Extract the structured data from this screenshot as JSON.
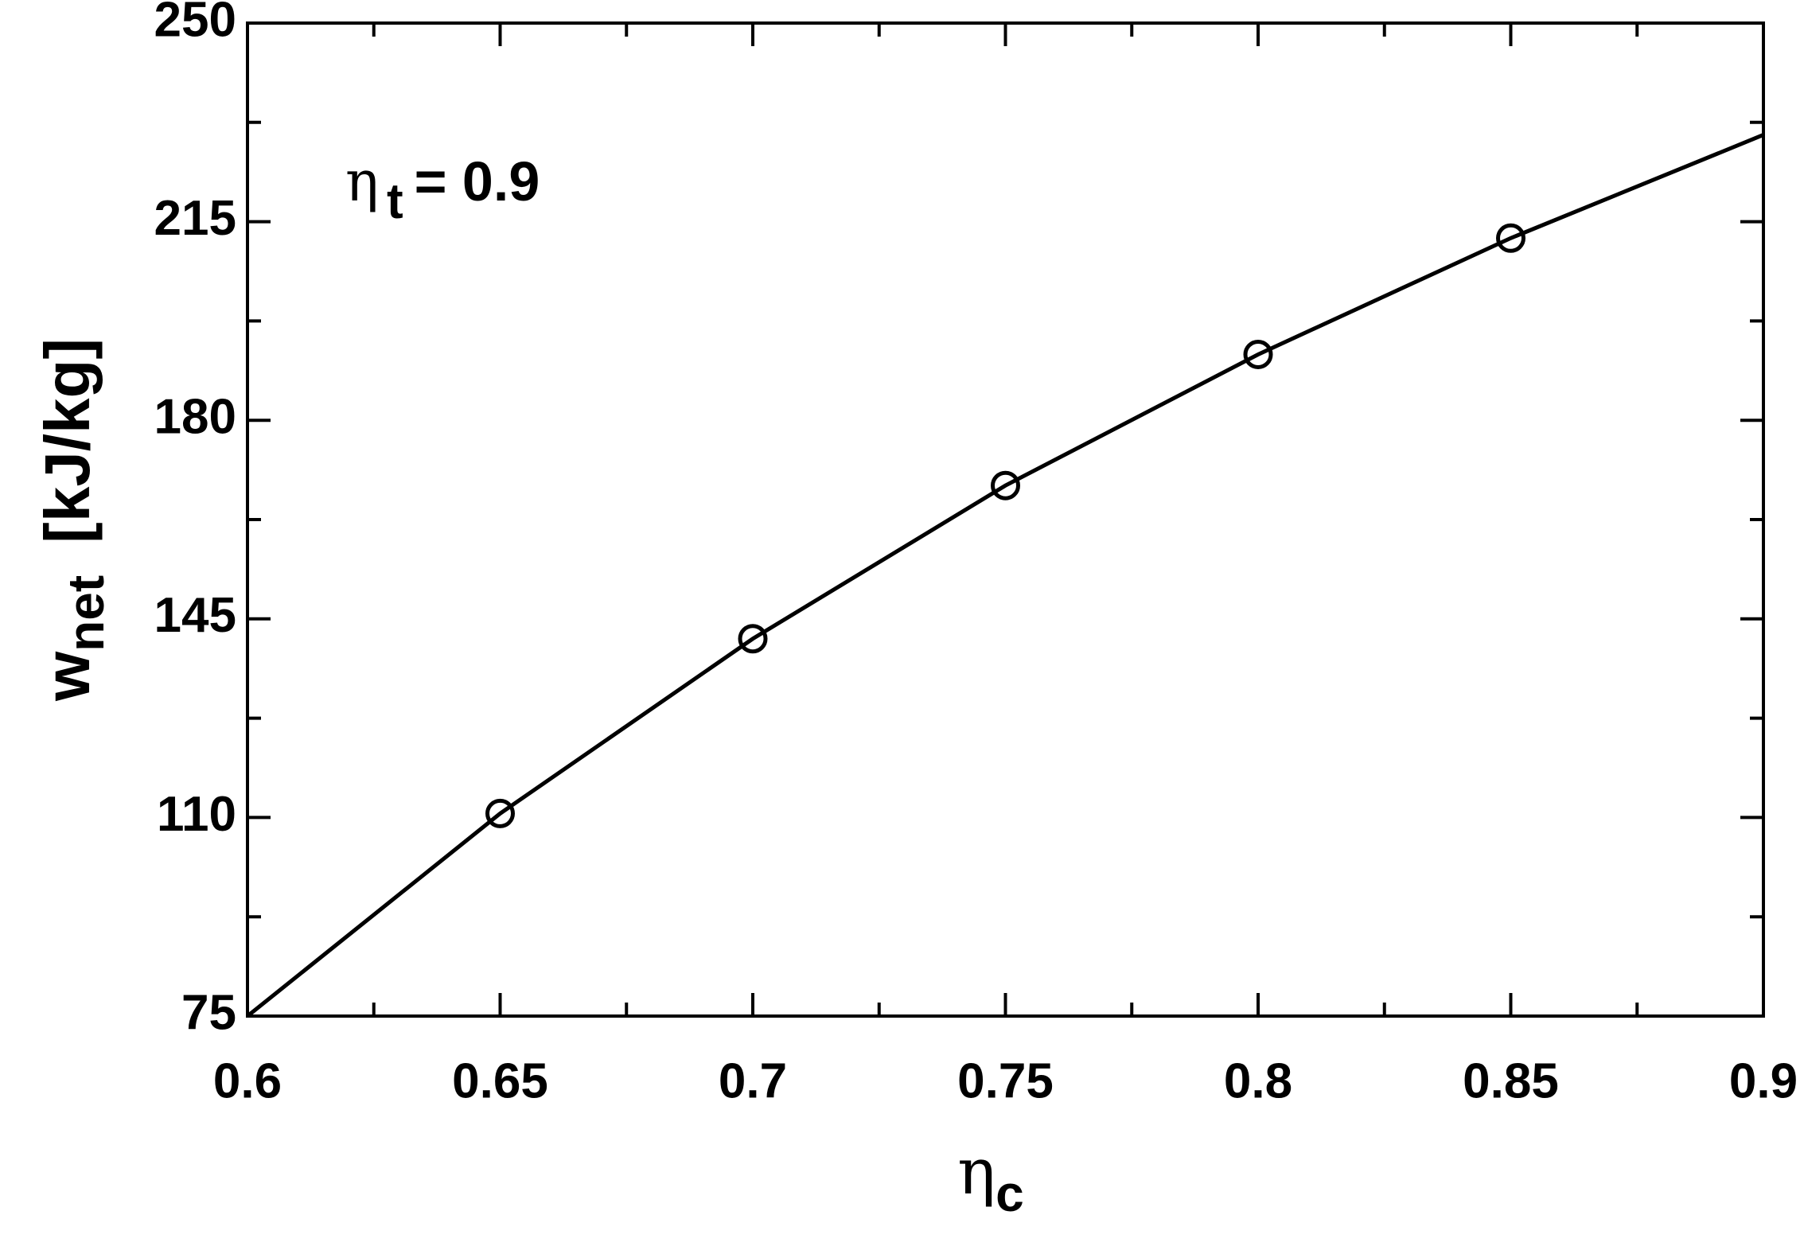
{
  "chart_data": {
    "type": "line",
    "x_label": {
      "symbol": "η",
      "subscript": "c"
    },
    "y_label": {
      "symbol": "w",
      "subscript": "net",
      "unit": "[kJ/kg]"
    },
    "annotation": {
      "symbol": "η",
      "subscript": "t",
      "text": "= 0.9"
    },
    "series": [
      {
        "style": "line",
        "color": "#000000",
        "x": [
          0.6,
          0.65,
          0.7,
          0.75,
          0.8,
          0.85,
          0.9
        ],
        "values": [
          75,
          110.7,
          141.5,
          168.5,
          191.6,
          212.1,
          230.3
        ]
      },
      {
        "style": "markers",
        "color": "#000000",
        "x": [
          0.65,
          0.7,
          0.75,
          0.8,
          0.85
        ],
        "values": [
          110.7,
          141.5,
          168.5,
          191.6,
          212.1
        ]
      }
    ],
    "xlim": [
      0.6,
      0.9
    ],
    "xticks": [
      0.6,
      0.65,
      0.7,
      0.75,
      0.8,
      0.85,
      0.9
    ],
    "xminor": [
      0.625,
      0.675,
      0.725,
      0.775,
      0.825,
      0.875
    ],
    "ylim": [
      75,
      250
    ],
    "yticks": [
      75,
      110,
      145,
      180,
      215,
      250
    ],
    "yminor": [
      92.5,
      127.5,
      162.5,
      197.5,
      232.5
    ],
    "grid": false
  }
}
